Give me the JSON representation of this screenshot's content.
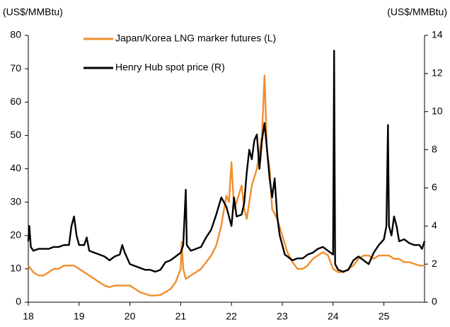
{
  "chart_data": {
    "type": "line",
    "y_label": "(US$/MMBtu)",
    "y2_label": "(US$/MMBtu)",
    "xlim": [
      18,
      25.8
    ],
    "xticks": [
      18,
      19,
      20,
      21,
      22,
      23,
      24,
      25
    ],
    "ylim": [
      0,
      80
    ],
    "yticks": [
      0,
      10,
      20,
      30,
      40,
      50,
      60,
      70,
      80
    ],
    "y2lim": [
      0,
      14
    ],
    "y2ticks": [
      0,
      2,
      4,
      6,
      8,
      10,
      12,
      14
    ],
    "legend": "top-left",
    "series": [
      {
        "name": "Japan/Korea LNG marker futures (L)",
        "color": "#f28e2b",
        "axis": "y",
        "x": [
          18.0,
          18.1,
          18.2,
          18.3,
          18.4,
          18.5,
          18.6,
          18.7,
          18.8,
          18.9,
          19.0,
          19.1,
          19.2,
          19.3,
          19.4,
          19.5,
          19.6,
          19.7,
          19.8,
          19.9,
          20.0,
          20.1,
          20.2,
          20.3,
          20.4,
          20.5,
          20.6,
          20.7,
          20.8,
          20.9,
          21.0,
          21.02,
          21.05,
          21.1,
          21.2,
          21.3,
          21.4,
          21.5,
          21.6,
          21.7,
          21.8,
          21.9,
          21.95,
          22.0,
          22.05,
          22.1,
          22.2,
          22.25,
          22.3,
          22.4,
          22.5,
          22.6,
          22.65,
          22.7,
          22.75,
          22.8,
          22.9,
          23.0,
          23.1,
          23.2,
          23.3,
          23.4,
          23.5,
          23.6,
          23.7,
          23.8,
          23.9,
          24.0,
          24.1,
          24.2,
          24.3,
          24.4,
          24.5,
          24.6,
          24.7,
          24.8,
          24.9,
          25.0,
          25.1,
          25.2,
          25.3,
          25.4,
          25.5,
          25.6,
          25.7,
          25.8
        ],
        "values": [
          11,
          9,
          8,
          8,
          9,
          10,
          10,
          11,
          11,
          11,
          10,
          9,
          8,
          7,
          6,
          5,
          4.5,
          5,
          5,
          5,
          5,
          4,
          3,
          2.5,
          2,
          2,
          2.2,
          3,
          4,
          6,
          10,
          18,
          10,
          7,
          8,
          9,
          10,
          12,
          14,
          17,
          23,
          32,
          30,
          42,
          28,
          30,
          35,
          28,
          25,
          35,
          40,
          50,
          68,
          45,
          40,
          28,
          25,
          20,
          15,
          12,
          10,
          10,
          11,
          13,
          14,
          15,
          14,
          10,
          9,
          9,
          10,
          11,
          13,
          14,
          14,
          13,
          14,
          14,
          14,
          13,
          13,
          12,
          12,
          11.5,
          11,
          11
        ]
      },
      {
        "name": "Henry Hub spot price (R)",
        "color": "#000000",
        "axis": "y2",
        "x": [
          18.0,
          18.02,
          18.05,
          18.1,
          18.2,
          18.3,
          18.4,
          18.5,
          18.6,
          18.7,
          18.8,
          18.85,
          18.9,
          18.95,
          19.0,
          19.1,
          19.15,
          19.2,
          19.3,
          19.4,
          19.5,
          19.6,
          19.7,
          19.8,
          19.85,
          19.9,
          20.0,
          20.1,
          20.2,
          20.3,
          20.4,
          20.5,
          20.6,
          20.7,
          20.8,
          20.9,
          21.0,
          21.05,
          21.1,
          21.12,
          21.2,
          21.3,
          21.4,
          21.5,
          21.6,
          21.7,
          21.8,
          21.9,
          22.0,
          22.05,
          22.1,
          22.2,
          22.25,
          22.3,
          22.35,
          22.4,
          22.45,
          22.5,
          22.55,
          22.6,
          22.65,
          22.7,
          22.75,
          22.8,
          22.85,
          22.9,
          22.95,
          23.0,
          23.05,
          23.1,
          23.2,
          23.3,
          23.4,
          23.5,
          23.6,
          23.7,
          23.8,
          23.9,
          24.0,
          24.02,
          24.04,
          24.1,
          24.2,
          24.3,
          24.4,
          24.5,
          24.6,
          24.7,
          24.8,
          24.9,
          25.0,
          25.05,
          25.08,
          25.1,
          25.15,
          25.2,
          25.25,
          25.3,
          25.4,
          25.5,
          25.6,
          25.7,
          25.75,
          25.8
        ],
        "values": [
          3.2,
          4.0,
          2.9,
          2.7,
          2.8,
          2.8,
          2.8,
          2.9,
          2.9,
          3.0,
          3.0,
          4.0,
          4.5,
          3.5,
          3.0,
          3.0,
          3.4,
          2.7,
          2.6,
          2.5,
          2.4,
          2.2,
          2.4,
          2.5,
          3.0,
          2.6,
          2.0,
          1.9,
          1.8,
          1.7,
          1.7,
          1.6,
          1.7,
          2.1,
          2.2,
          2.4,
          2.6,
          3.0,
          5.9,
          3.0,
          2.7,
          2.8,
          2.9,
          3.4,
          3.8,
          4.6,
          5.5,
          5.0,
          4.0,
          5.5,
          4.5,
          4.6,
          5.2,
          6.8,
          8.0,
          7.5,
          8.5,
          8.8,
          7.0,
          8.5,
          9.4,
          8.0,
          6.5,
          5.5,
          6.5,
          4.5,
          3.5,
          3.0,
          2.5,
          2.4,
          2.2,
          2.3,
          2.3,
          2.5,
          2.6,
          2.8,
          2.9,
          2.7,
          2.5,
          13.2,
          2.0,
          1.7,
          1.6,
          1.7,
          2.2,
          2.4,
          2.2,
          2.0,
          2.6,
          3.0,
          3.3,
          4.0,
          9.3,
          4.0,
          3.5,
          4.5,
          4.0,
          3.2,
          3.3,
          3.1,
          3.0,
          3.0,
          2.8,
          3.2
        ]
      }
    ]
  }
}
